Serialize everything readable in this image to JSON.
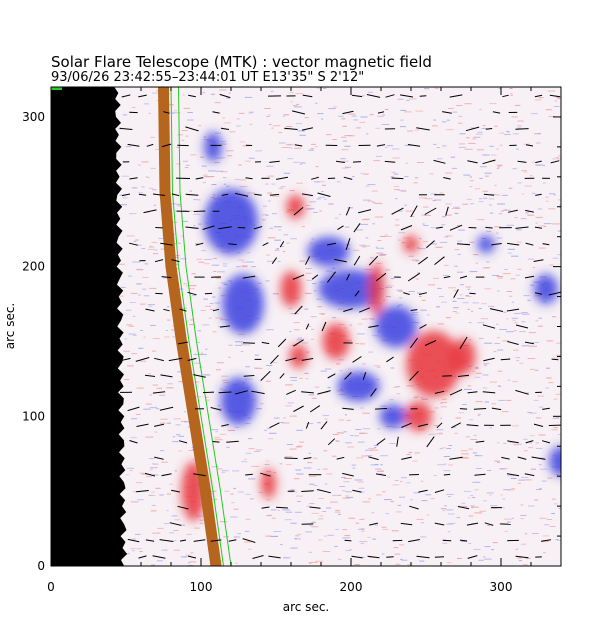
{
  "chart_data": {
    "type": "heatmap",
    "title": "Solar Flare Telescope (MTK) : vector magnetic field",
    "subtitle": "93/06/26  23:42:55–23:44:01 UT    E13'35\"  S 2'12\"",
    "xlabel": "arc sec.",
    "ylabel": "arc sec.",
    "xlim": [
      0,
      340
    ],
    "ylim": [
      0,
      320
    ],
    "xticks": [
      0,
      100,
      200,
      300
    ],
    "yticks": [
      0,
      100,
      200,
      300
    ],
    "colors": {
      "positive_polarity": "#e8343a",
      "negative_polarity": "#3a3fe0",
      "background_noise_red": "#f2a4a4",
      "background_noise_blue": "#a9adf0",
      "off_limb": "#000000",
      "limb_band": "#b5651d",
      "contour": "#22cc22",
      "vectors": "#000000"
    },
    "blobs": [
      {
        "sign": "negative",
        "x": 120,
        "y": 230,
        "rx": 18,
        "ry": 22
      },
      {
        "sign": "negative",
        "x": 128,
        "y": 175,
        "rx": 14,
        "ry": 20
      },
      {
        "sign": "negative",
        "x": 125,
        "y": 110,
        "rx": 12,
        "ry": 16
      },
      {
        "sign": "positive",
        "x": 163,
        "y": 240,
        "rx": 6,
        "ry": 8
      },
      {
        "sign": "positive",
        "x": 160,
        "y": 185,
        "rx": 7,
        "ry": 12
      },
      {
        "sign": "positive",
        "x": 165,
        "y": 140,
        "rx": 6,
        "ry": 8
      },
      {
        "sign": "negative",
        "x": 185,
        "y": 210,
        "rx": 14,
        "ry": 10
      },
      {
        "sign": "negative",
        "x": 200,
        "y": 185,
        "rx": 22,
        "ry": 13
      },
      {
        "sign": "negative",
        "x": 230,
        "y": 160,
        "rx": 14,
        "ry": 14
      },
      {
        "sign": "negative",
        "x": 205,
        "y": 120,
        "rx": 14,
        "ry": 10
      },
      {
        "sign": "negative",
        "x": 228,
        "y": 100,
        "rx": 9,
        "ry": 8
      },
      {
        "sign": "positive",
        "x": 190,
        "y": 150,
        "rx": 9,
        "ry": 12
      },
      {
        "sign": "positive",
        "x": 217,
        "y": 185,
        "rx": 5,
        "ry": 18
      },
      {
        "sign": "positive",
        "x": 240,
        "y": 215,
        "rx": 5,
        "ry": 6
      },
      {
        "sign": "positive",
        "x": 255,
        "y": 135,
        "rx": 18,
        "ry": 22
      },
      {
        "sign": "positive",
        "x": 245,
        "y": 100,
        "rx": 9,
        "ry": 10
      },
      {
        "sign": "positive",
        "x": 275,
        "y": 140,
        "rx": 8,
        "ry": 12
      },
      {
        "sign": "negative",
        "x": 290,
        "y": 215,
        "rx": 6,
        "ry": 6
      },
      {
        "sign": "negative",
        "x": 330,
        "y": 185,
        "rx": 8,
        "ry": 10
      },
      {
        "sign": "positive",
        "x": 95,
        "y": 50,
        "rx": 8,
        "ry": 20
      },
      {
        "sign": "negative",
        "x": 108,
        "y": 280,
        "rx": 6,
        "ry": 10
      },
      {
        "sign": "positive",
        "x": 145,
        "y": 55,
        "rx": 5,
        "ry": 10
      },
      {
        "sign": "negative",
        "x": 340,
        "y": 70,
        "rx": 8,
        "ry": 10
      }
    ],
    "limb": [
      [
        75,
        320
      ],
      [
        76,
        250
      ],
      [
        80,
        200
      ],
      [
        87,
        150
      ],
      [
        95,
        100
      ],
      [
        103,
        50
      ],
      [
        110,
        0
      ]
    ],
    "annotations": [
      "vector arrows over field (transverse field direction)"
    ]
  }
}
